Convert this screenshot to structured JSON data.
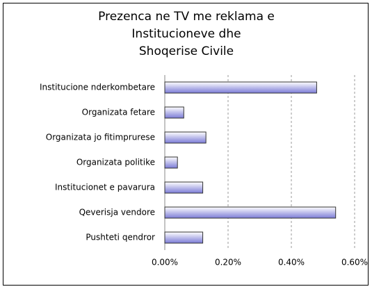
{
  "chart_data": {
    "type": "hbar",
    "title": [
      "Prezenca ne TV  me reklama e",
      "Institucioneve  dhe",
      "Shoqerise Civile"
    ],
    "categories": [
      "Institucione nderkombetare",
      "Organizata fetare",
      "Organizata jo fitimprurese",
      "Organizata politike",
      "Institucionet e pavarura",
      "Qeverisja vendore",
      "Pushteti qendror"
    ],
    "values": [
      0.48,
      0.06,
      0.13,
      0.04,
      0.12,
      0.54,
      0.12
    ],
    "color": "#7b7bd6",
    "xlim": [
      0,
      0.6
    ],
    "xticks": [
      {
        "value": 0,
        "label": "0.00%"
      },
      {
        "value": 0.2,
        "label": "0.20%"
      },
      {
        "value": 0.4,
        "label": "0.40%"
      },
      {
        "value": 0.6,
        "label": "0.60%"
      }
    ],
    "grid": true
  }
}
